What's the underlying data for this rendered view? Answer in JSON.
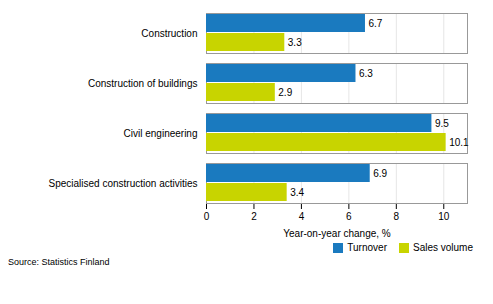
{
  "chart_data": {
    "type": "bar",
    "orientation": "horizontal",
    "categories": [
      "Construction",
      "Construction of buildings",
      "Civil engineering",
      "Specialised construction activities"
    ],
    "series": [
      {
        "name": "Turnover",
        "color": "#1a7abf",
        "values": [
          6.7,
          6.3,
          9.5,
          6.9
        ]
      },
      {
        "name": "Sales volume",
        "color": "#c8d400",
        "values": [
          3.3,
          2.9,
          10.1,
          3.4
        ]
      }
    ],
    "xlabel": "Year-on-year change, %",
    "xlim": [
      0,
      11
    ],
    "xticks": [
      0,
      2,
      4,
      6,
      8,
      10
    ],
    "grid": true,
    "legend": "lower right",
    "data_labels": true,
    "caption": "Source: Statistics Finland"
  }
}
